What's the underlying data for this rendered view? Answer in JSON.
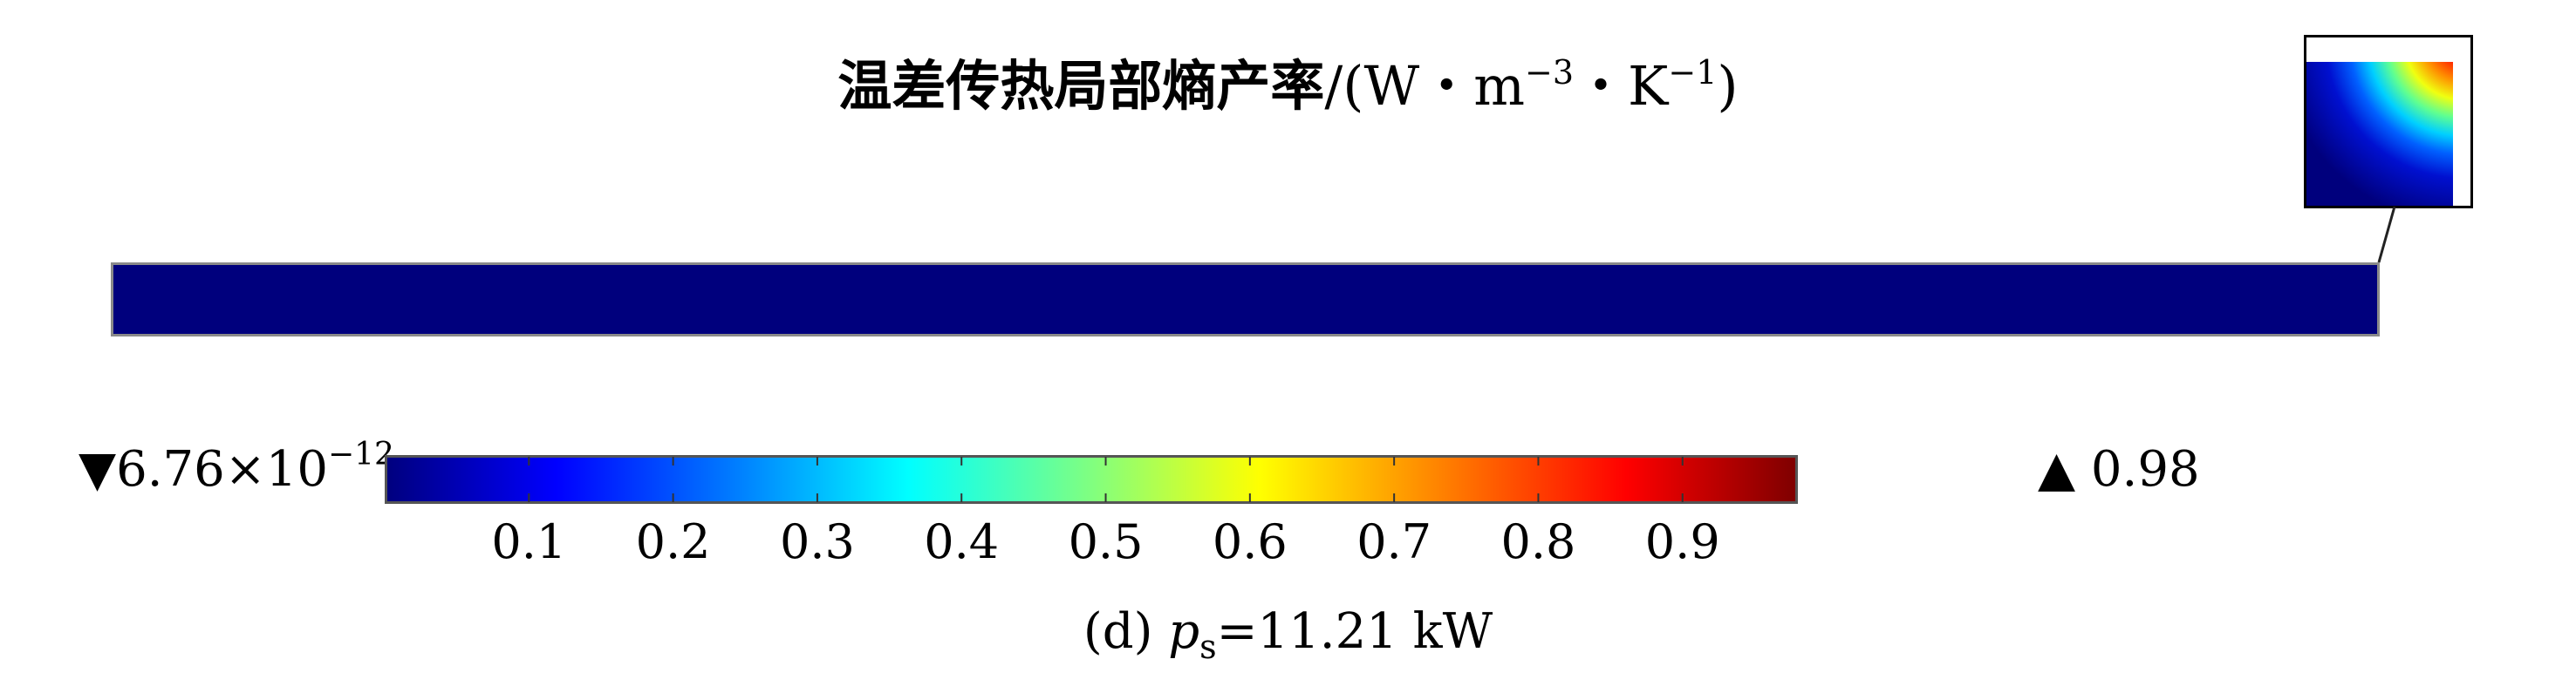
{
  "chart_data": {
    "type": "heatmap",
    "title": {
      "name": "温差传热局部熵产率",
      "unit_open": "/(W・m",
      "unit_exp1": "−3",
      "unit_mid": "・K",
      "unit_exp2": "−1",
      "unit_close": ")"
    },
    "field_uniform_value_main_domain": 6.76e-12,
    "colorbar": {
      "min_marker": "▼",
      "min_mantissa": "6.76×10",
      "min_exponent": "−12",
      "max_marker": "▲",
      "max_value": "0.98",
      "range": [
        6.76e-12,
        0.98
      ],
      "colormap": "rainbow (dark blue → blue → cyan → green → yellow → orange → red → dark red)",
      "tick_labels": [
        "0.1",
        "0.2",
        "0.3",
        "0.4",
        "0.5",
        "0.6",
        "0.7",
        "0.8",
        "0.9"
      ],
      "tick_values": [
        0.1,
        0.2,
        0.3,
        0.4,
        0.5,
        0.6,
        0.7,
        0.8,
        0.9
      ]
    },
    "inset": "zoomed corner at right end of domain, high values (red) at top-right corner decaying to blue"
  },
  "caption": {
    "prefix": "(d) ",
    "var": "p",
    "sub": "s",
    "suffix": "=11.21 kW"
  },
  "colors": {
    "domain_fill": "#00007d",
    "inset_frame": "#000000"
  }
}
